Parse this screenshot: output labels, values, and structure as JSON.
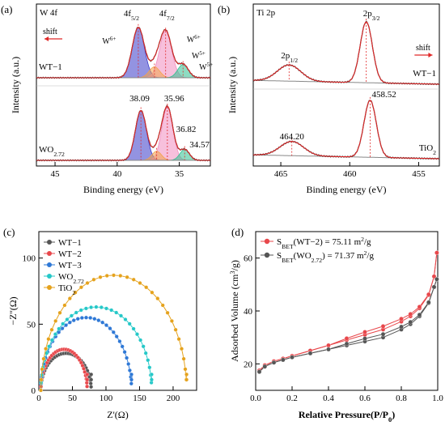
{
  "chart_data": [
    {
      "panel": "(a)",
      "type": "line",
      "subtype": "xps-spectrum",
      "title": "W 4f",
      "xlabel": "Binding energy (eV)",
      "ylabel": "Intensity (a.u.)",
      "xlim": [
        46.5,
        32.5
      ],
      "x_reversed": true,
      "xticks": [
        45,
        40,
        35
      ],
      "spectra": [
        {
          "name": "WT−1",
          "peaks": [
            {
              "label": "W6+",
              "center": 38.3,
              "fwhm": 1.15,
              "height": 0.83,
              "fill": "#3a3ac8"
            },
            {
              "label": "W6+",
              "center": 36.1,
              "fwhm": 1.15,
              "height": 0.77,
              "fill": "#f08cc0"
            },
            {
              "label": "W5+",
              "center": 37.0,
              "fwhm": 1.0,
              "height": 0.18,
              "fill": "#f3a34a"
            },
            {
              "label": "W5+",
              "center": 34.7,
              "fwhm": 1.0,
              "height": 0.22,
              "fill": "#2fbf90"
            }
          ],
          "peak_labels": [
            "4f5/2",
            "4f7/2"
          ],
          "annotation": "shift"
        },
        {
          "name": "WO2.72",
          "peaks": [
            {
              "label": "38.09",
              "center": 38.09,
              "fwhm": 1.05,
              "height": 0.82,
              "fill": "#3a3ac8"
            },
            {
              "label": "35.96",
              "center": 35.96,
              "fwhm": 1.05,
              "height": 0.88,
              "fill": "#f08cc0"
            },
            {
              "label": "36.82",
              "center": 36.82,
              "fwhm": 0.9,
              "height": 0.15,
              "fill": "#f3a34a"
            },
            {
              "label": "34.57",
              "center": 34.57,
              "fwhm": 0.9,
              "height": 0.18,
              "fill": "#2fbf90"
            }
          ],
          "values_labeled": [
            "38.09",
            "35.96",
            "36.82",
            "34.57"
          ]
        }
      ]
    },
    {
      "panel": "(b)",
      "type": "line",
      "subtype": "xps-spectrum",
      "title": "Ti 2p",
      "xlabel": "Binding energy (eV)",
      "ylabel": "Intensity (a.u.)",
      "xlim": [
        467,
        453.5
      ],
      "x_reversed": true,
      "xticks": [
        465,
        460,
        455
      ],
      "spectra": [
        {
          "name": "WT−1",
          "peaks": [
            {
              "label": "2p1/2",
              "center": 464.4,
              "fwhm": 2.0,
              "height": 0.25
            },
            {
              "label": "2p3/2",
              "center": 458.8,
              "fwhm": 1.05,
              "height": 0.94
            }
          ],
          "peak_labels": [
            "2p1/2",
            "2p3/2"
          ],
          "annotation": "shift"
        },
        {
          "name": "TiO2",
          "peaks": [
            {
              "label": "464.20",
              "center": 464.2,
              "fwhm": 2.0,
              "height": 0.22
            },
            {
              "label": "458.52",
              "center": 458.52,
              "fwhm": 1.05,
              "height": 0.88
            }
          ],
          "values_labeled": [
            "464.20",
            "458.52"
          ]
        }
      ]
    },
    {
      "panel": "(c)",
      "type": "scatter",
      "subtype": "nyquist",
      "xlabel": "Z'(Ω)",
      "ylabel": "−Z''(Ω)",
      "xlim": [
        0,
        235
      ],
      "ylim": [
        0,
        120
      ],
      "xticks": [
        0,
        50,
        100,
        150,
        200
      ],
      "yticks": [
        0,
        50,
        100
      ],
      "legend_position": "top-left",
      "series": [
        {
          "name": "WT−1",
          "color": "#555555",
          "x_start": 3,
          "x_end": 78,
          "peak": 28
        },
        {
          "name": "WT−2",
          "color": "#e8474b",
          "x_start": 3,
          "x_end": 72,
          "peak": 31
        },
        {
          "name": "WT−3",
          "color": "#2e78d6",
          "x_start": 3,
          "x_end": 138,
          "peak": 55
        },
        {
          "name": "WO2.72",
          "color": "#25c8c8",
          "x_start": 3,
          "x_end": 168,
          "peak": 63
        },
        {
          "name": "TiO2",
          "color": "#e5a21c",
          "x_start": 3,
          "x_end": 220,
          "peak": 87
        }
      ]
    },
    {
      "panel": "(d)",
      "type": "line",
      "subtype": "bet-isotherm",
      "xlabel": "Relative Pressure(P/P0)",
      "ylabel": "Adsorbed Volume (cm3/g)",
      "xlim": [
        0,
        1.0
      ],
      "ylim": [
        10,
        70
      ],
      "xticks": [
        0.0,
        0.2,
        0.4,
        0.6,
        0.8,
        1.0
      ],
      "yticks": [
        20,
        40,
        60
      ],
      "legend_position": "top-left",
      "series": [
        {
          "name": "SBET(WT−2) = 75.11 m2/g",
          "color": "#e8474b",
          "x": [
            0.02,
            0.05,
            0.1,
            0.15,
            0.2,
            0.3,
            0.4,
            0.5,
            0.6,
            0.7,
            0.8,
            0.85,
            0.9,
            0.95,
            0.98,
            0.995
          ],
          "y": [
            17.5,
            19.5,
            21,
            22,
            23,
            25,
            27,
            29,
            31,
            33,
            36,
            38,
            41,
            46,
            53,
            62
          ]
        },
        {
          "name": "SBET(WO2.72) = 71.37 m2/g",
          "color": "#555555",
          "x": [
            0.02,
            0.05,
            0.1,
            0.15,
            0.2,
            0.3,
            0.4,
            0.5,
            0.6,
            0.7,
            0.8,
            0.85,
            0.9,
            0.95,
            0.98,
            0.995
          ],
          "y": [
            17,
            19,
            20.5,
            21.5,
            22.5,
            24,
            25.5,
            27,
            28.5,
            30,
            33,
            35,
            38,
            43,
            49,
            52
          ]
        }
      ]
    }
  ]
}
